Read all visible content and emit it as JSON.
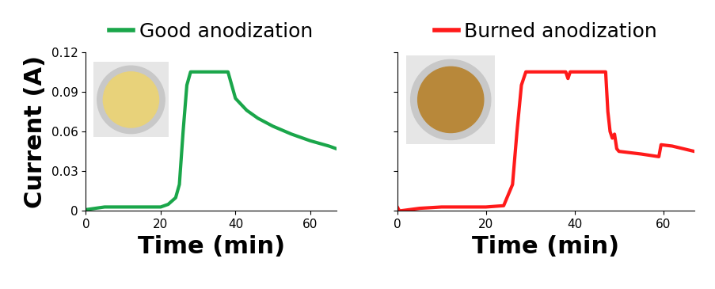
{
  "chart_data": [
    {
      "type": "line",
      "x_label": "Time (min)",
      "y_label": "Current (A)",
      "xlim": [
        0,
        67
      ],
      "xticks": [
        0,
        20,
        40,
        60
      ],
      "ylim": [
        0,
        0.12
      ],
      "yticks": [
        0,
        0.03,
        0.06,
        0.09,
        0.12
      ],
      "legend": "lower center",
      "x": [
        0,
        5,
        10,
        20,
        22,
        24,
        25,
        26,
        27,
        28,
        38,
        39,
        40,
        43,
        46,
        50,
        55,
        60,
        65,
        67
      ],
      "series": [
        {
          "name": "Good anodization",
          "color": "#1aa64a",
          "values": [
            0.001,
            0.003,
            0.003,
            0.003,
            0.005,
            0.01,
            0.02,
            0.06,
            0.095,
            0.105,
            0.105,
            0.095,
            0.085,
            0.076,
            0.07,
            0.064,
            0.058,
            0.053,
            0.049,
            0.047
          ]
        }
      ]
    },
    {
      "type": "line",
      "x_label": "Time (min)",
      "xlim": [
        0,
        67
      ],
      "xticks": [
        0,
        20,
        40,
        60
      ],
      "ylim": [
        0,
        0.12
      ],
      "yticks": [
        0,
        0.03,
        0.06,
        0.09,
        0.12
      ],
      "tick_labels": "x",
      "legend": "lower center",
      "x": [
        0,
        0.5,
        5,
        10,
        20,
        24,
        26,
        27,
        28,
        29,
        38,
        38.5,
        39,
        47,
        47.5,
        48,
        48.5,
        49,
        49.5,
        50,
        55,
        59,
        59.5,
        62,
        67
      ],
      "series": [
        {
          "name": "Burned anodization",
          "color": "#ff1a1a",
          "values": [
            0.003,
            0.0,
            0.002,
            0.003,
            0.003,
            0.004,
            0.02,
            0.06,
            0.095,
            0.105,
            0.105,
            0.1,
            0.105,
            0.105,
            0.075,
            0.06,
            0.055,
            0.058,
            0.047,
            0.045,
            0.043,
            0.041,
            0.05,
            0.049,
            0.045
          ]
        }
      ]
    }
  ]
}
